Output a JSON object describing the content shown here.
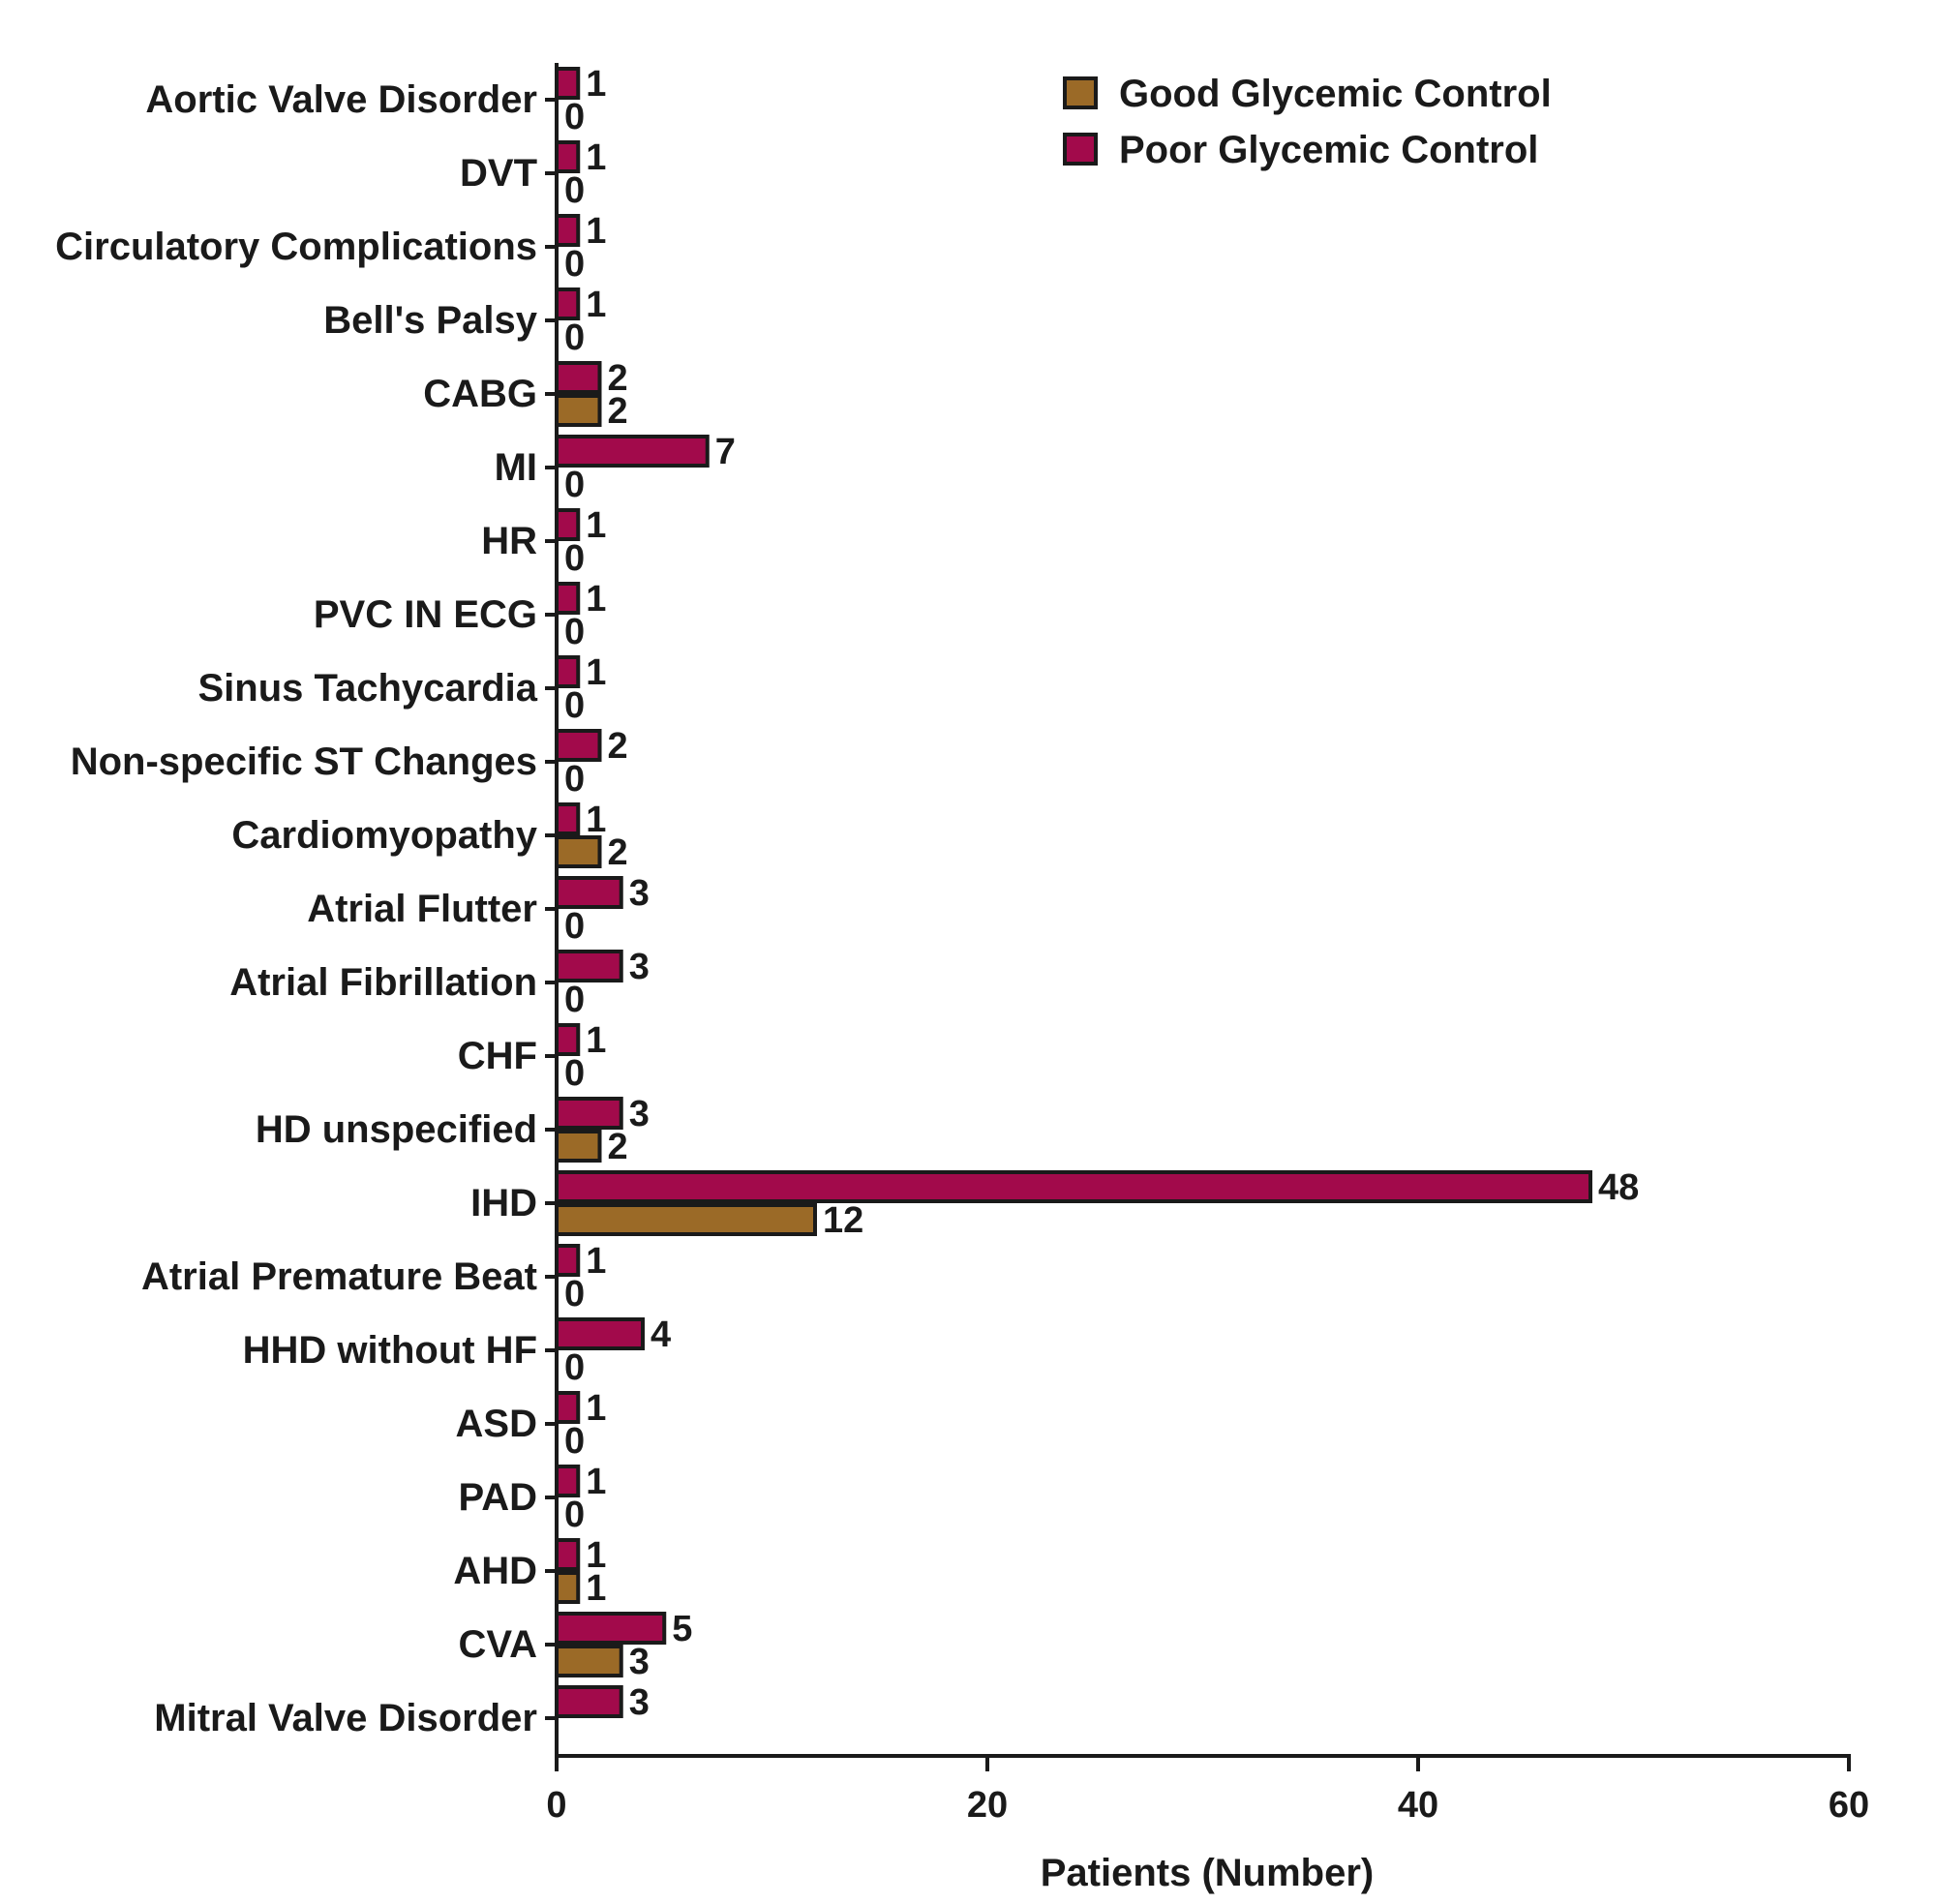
{
  "chart_data": {
    "type": "bar",
    "orientation": "horizontal",
    "title": "",
    "xlabel": "Patients (Number)",
    "ylabel": "",
    "xlim": [
      0,
      60
    ],
    "xticks": [
      0,
      20,
      40,
      60
    ],
    "grid": false,
    "legend_position": "top-right",
    "categories": [
      "Aortic Valve Disorder",
      "DVT",
      "Circulatory Complications",
      "Bell's Palsy",
      "CABG",
      "MI",
      "HR",
      "PVC IN ECG",
      "Sinus Tachycardia",
      "Non-specific ST Changes",
      "Cardiomyopathy",
      "Atrial Flutter",
      "Atrial Fibrillation",
      "CHF",
      "HD unspecified",
      "IHD",
      "Atrial Premature Beat",
      "HHD without HF",
      "ASD",
      "PAD",
      "AHD",
      "CVA",
      "Mitral Valve Disorder"
    ],
    "series": [
      {
        "name": "Good Glycemic Control",
        "color": "#9b6a27",
        "values": [
          0,
          0,
          0,
          0,
          2,
          0,
          0,
          0,
          0,
          0,
          2,
          0,
          0,
          0,
          2,
          12,
          0,
          0,
          0,
          0,
          1,
          3,
          null
        ],
        "labels": [
          "0",
          "0",
          "0",
          "0",
          "2",
          "0",
          "0",
          "0",
          "0",
          "0",
          "2",
          "0",
          "0",
          "0",
          "2",
          "12",
          "0",
          "0",
          "0",
          "0",
          "1",
          "3",
          ""
        ]
      },
      {
        "name": "Poor Glycemic Control",
        "color": "#a20a4b",
        "values": [
          1,
          1,
          1,
          1,
          2,
          7,
          1,
          1,
          1,
          2,
          1,
          3,
          3,
          1,
          3,
          48,
          1,
          4,
          1,
          1,
          1,
          5,
          3
        ],
        "labels": [
          "1",
          "1",
          "1",
          "1",
          "2",
          "7",
          "1",
          "1",
          "1",
          "2",
          "1",
          "3",
          "3",
          "1",
          "3",
          "48",
          "1",
          "4",
          "1",
          "1",
          "1",
          "5",
          "3"
        ]
      }
    ]
  }
}
